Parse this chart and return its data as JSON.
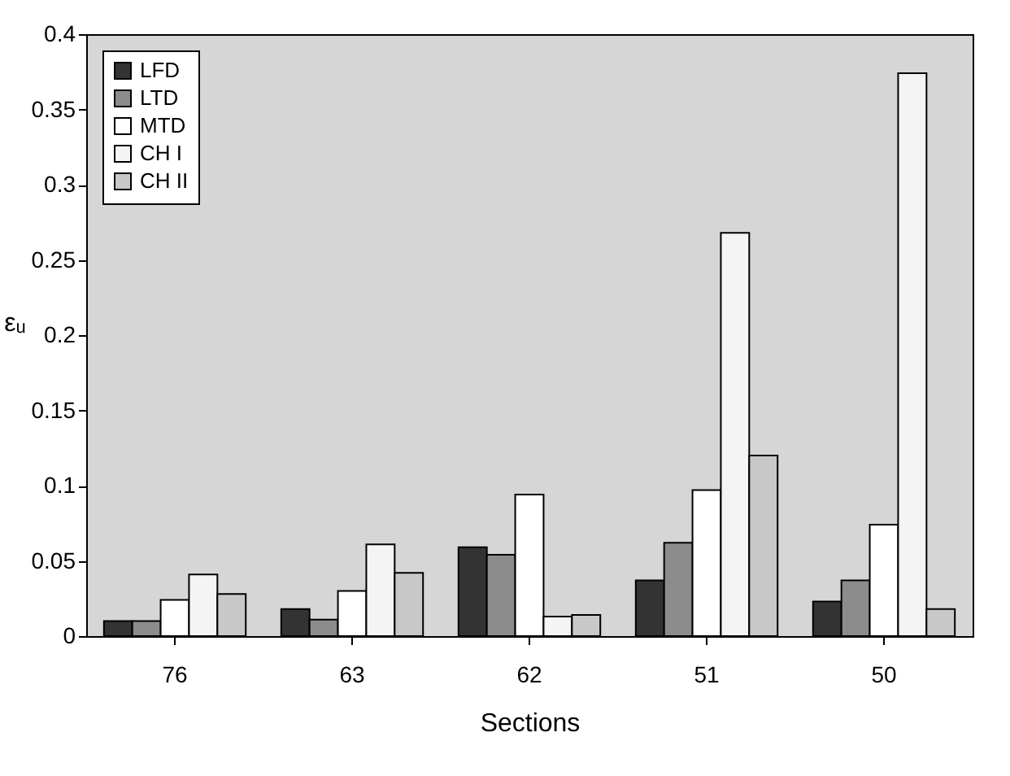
{
  "chart_data": {
    "type": "bar",
    "xlabel": "Sections",
    "ylabel": "εᵤ",
    "categories": [
      "76",
      "63",
      "62",
      "51",
      "50"
    ],
    "series": [
      {
        "name": "LFD",
        "color": "#333333",
        "values": [
          0.01,
          0.018,
          0.059,
          0.037,
          0.023
        ]
      },
      {
        "name": "LTD",
        "color": "#8c8c8c",
        "values": [
          0.01,
          0.011,
          0.054,
          0.062,
          0.037
        ]
      },
      {
        "name": "MTD",
        "color": "#ffffff",
        "values": [
          0.024,
          0.03,
          0.094,
          0.097,
          0.074
        ]
      },
      {
        "name": "CH I",
        "color": "#f4f4f4",
        "values": [
          0.041,
          0.061,
          0.013,
          0.268,
          0.374
        ]
      },
      {
        "name": "CH II",
        "color": "#c8c8c8",
        "values": [
          0.028,
          0.042,
          0.014,
          0.12,
          0.018
        ]
      }
    ],
    "ylim": [
      0,
      0.4
    ],
    "yticks": [
      0,
      0.05,
      0.1,
      0.15,
      0.2,
      0.25,
      0.3,
      0.35,
      0.4
    ],
    "grid": false,
    "legend": "top left"
  }
}
